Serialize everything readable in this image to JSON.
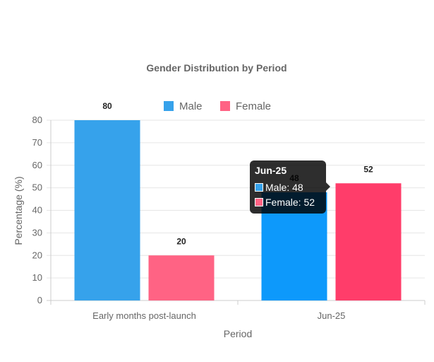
{
  "chart_data": {
    "type": "bar",
    "title": "Gender Distribution by Period",
    "xlabel": "Period",
    "ylabel": "Percentage (%)",
    "categories": [
      "Early months post-launch",
      "Jun-25"
    ],
    "series": [
      {
        "name": "Male",
        "values": [
          80,
          48
        ],
        "color": "#36a2eb",
        "highlight_color": "#0d99fb"
      },
      {
        "name": "Female",
        "values": [
          20,
          52
        ],
        "color": "#ff6384",
        "highlight_color": "#ff3d6a"
      }
    ],
    "ylim": [
      0,
      80
    ],
    "yticks": [
      0,
      10,
      20,
      30,
      40,
      50,
      60,
      70,
      80
    ],
    "grid": true,
    "legend_position": "top",
    "data_labels": true
  },
  "tooltip": {
    "title": "Jun-25",
    "rows": [
      {
        "label": "Male: 48",
        "color": "#36a2eb"
      },
      {
        "label": "Female: 52",
        "color": "#ff6384"
      }
    ]
  }
}
